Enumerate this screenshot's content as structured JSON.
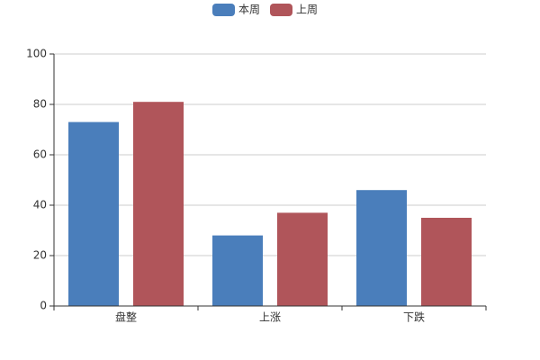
{
  "chart_data": {
    "type": "bar",
    "categories": [
      "盘整",
      "上涨",
      "下跌"
    ],
    "series": [
      {
        "name": "本周",
        "color": "#4a7ebb",
        "values": [
          73,
          28,
          46
        ]
      },
      {
        "name": "上周",
        "color": "#b0555a",
        "values": [
          81,
          37,
          35
        ]
      }
    ],
    "ylim": [
      0,
      100
    ],
    "yticks": [
      0,
      20,
      40,
      60,
      80,
      100
    ],
    "grid": true,
    "legend": "top"
  }
}
